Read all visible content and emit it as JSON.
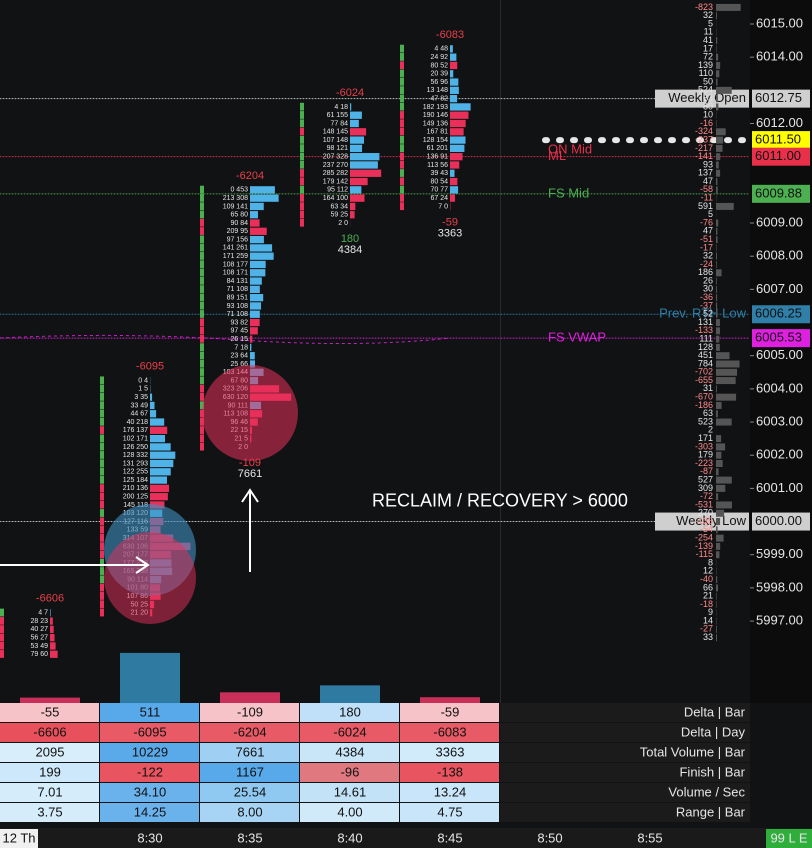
{
  "price_axis": {
    "ticks": [
      {
        "value": 6015,
        "label": "6015.00"
      },
      {
        "value": 6014,
        "label": "6014.00"
      },
      {
        "value": 6012,
        "label": "6012.00"
      },
      {
        "value": 6009,
        "label": "6009.00"
      },
      {
        "value": 6008,
        "label": "6008.00"
      },
      {
        "value": 6007,
        "label": "6007.00"
      },
      {
        "value": 6005,
        "label": "6005.00"
      },
      {
        "value": 6004,
        "label": "6004.00"
      },
      {
        "value": 6003,
        "label": "6003.00"
      },
      {
        "value": 6002,
        "label": "6002.00"
      },
      {
        "value": 6001,
        "label": "6001.00"
      },
      {
        "value": 5999,
        "label": "5999.00"
      },
      {
        "value": 5998,
        "label": "5998.00"
      },
      {
        "value": 5997,
        "label": "5997.00"
      }
    ]
  },
  "levels": [
    {
      "name": "Weekly Open",
      "price": {
        "value": 6012.75,
        "label": "6012.75"
      },
      "color": "#cfcfcf",
      "boxed": true
    },
    {
      "price": {
        "value": 6011.5,
        "label": "6011.50"
      },
      "color": "#ffff00"
    },
    {
      "name": "ML",
      "price": {
        "value": 6011,
        "label": "6011.00"
      },
      "color": "#e8304a"
    },
    {
      "name": "FS Mid",
      "price": {
        "value": 6009.88,
        "label": "6009.88"
      },
      "color": "#4caf50"
    },
    {
      "name": "Prev. RTH Low",
      "price": {
        "value": 6006.25,
        "label": "6006.25"
      },
      "color": "#2f7fa8"
    },
    {
      "name": "FS VWAP",
      "price": {
        "value": 6005.53,
        "label": "6005.53"
      },
      "color": "#e020e0"
    },
    {
      "name": "Weekly Low",
      "price": {
        "value": 6000,
        "label": "6000.00"
      },
      "color": "#cfcfcf",
      "boxed": true
    }
  ],
  "annotations": [
    {
      "text": "ON Mid",
      "price": 6011.2,
      "color": "#e8304a"
    },
    {
      "text": "RECLAIM / RECOVERY > 6000",
      "price": 6000.6,
      "color": "#ffffff"
    }
  ],
  "bars": [
    {
      "top_price": 5997.25,
      "rows": [
        "4 7",
        "28 23",
        "40 27",
        "56 27",
        "53 49",
        "79 60"
      ]
    },
    {
      "top_price": 6004.25,
      "rows": [
        "0 4",
        "1 5",
        "3 35",
        "33 49",
        "44 67",
        "40 218",
        "176 137",
        "102 171",
        "126 250",
        "128 332",
        "131 293",
        "122 255",
        "125 184",
        "210 136",
        "200 125",
        "145 118",
        "103 120",
        "127 116",
        "133 59",
        "314 107",
        "630 106",
        "207 177",
        "177 213",
        "165 238",
        "90 114",
        "101 80",
        "107 86",
        "50 25",
        "21 20"
      ]
    },
    {
      "top_price": 6010,
      "show_totals": true,
      "rows": [
        "0 453",
        "213 308",
        "109 141",
        "65 80",
        "90 84",
        "209 95",
        "97 156",
        "141 261",
        "171 259",
        "108 177",
        "108 171",
        "84 131",
        "71 108",
        "89 151",
        "93 108",
        "71 108",
        "93 82",
        "97 45",
        "26 15",
        "7 18",
        "23 64",
        "25 66",
        "103 144",
        "67 80",
        "323 206",
        "630 120",
        "90 111",
        "113 108",
        "96 46",
        "22 15",
        "21 5",
        "2 0"
      ]
    },
    {
      "top_price": 6012.5,
      "show_totals": true,
      "rows": [
        "4 18",
        "61 155",
        "77 84",
        "148 145",
        "107 148",
        "98 121",
        "207 328",
        "237 270",
        "285 282",
        "179 142",
        "95 112",
        "164 100",
        "63 34",
        "59 25",
        "2 0"
      ]
    },
    {
      "top_price": 6014.25,
      "show_totals": true,
      "rows": [
        "4 48",
        "24 92",
        "80 52",
        "20 39",
        "56 96",
        "13 148",
        "47 82",
        "182 193",
        "190 146",
        "149 136",
        "167 81",
        "128 154",
        "61 201",
        "136 91",
        "113 56",
        "39 43",
        "80 54",
        "70 77",
        "67 24",
        "7 0"
      ]
    }
  ],
  "dom": {
    "top_price": 6015.5,
    "values": [
      "-823",
      "32",
      "5",
      "11",
      "41",
      "17",
      "72",
      "139",
      "110",
      "50",
      "524",
      "63",
      "80",
      "10",
      "-16",
      "-324",
      "-237",
      "-217",
      "-141",
      "93",
      "137",
      "47",
      "-58",
      "-11",
      "591",
      "5",
      "-76",
      "47",
      "-51",
      "-17",
      "32",
      "-24",
      "186",
      "26",
      "30",
      "-36",
      "-37",
      "52",
      "131",
      "-133",
      "111",
      "128",
      "451",
      "784",
      "-702",
      "-655",
      "31",
      "-670",
      "-186",
      "63",
      "523",
      "2",
      "171",
      "-303",
      "179",
      "-223",
      "-87",
      "527",
      "309",
      "-72",
      "-531",
      "270",
      "-135",
      "-54",
      "-254",
      "-139",
      "-115",
      "8",
      "12",
      "-40",
      "66",
      "21",
      "-18",
      "9",
      "14",
      "-27",
      "33"
    ]
  },
  "table": {
    "rows": [
      {
        "label": "Delta | Bar",
        "values": [
          "-55",
          "511",
          "-109",
          "180",
          "-59"
        ],
        "colors": [
          "#f6c3c8",
          "#58a9ea",
          "#f6c3c8",
          "#bfe0f8",
          "#f6c3c8"
        ]
      },
      {
        "label": "Delta | Day",
        "values": [
          "-6606",
          "-6095",
          "-6204",
          "-6024",
          "-6083"
        ],
        "colors": [
          "#e8505c",
          "#e85a65",
          "#e85a65",
          "#e85a65",
          "#e85a65"
        ]
      },
      {
        "label": "Total Volume | Bar",
        "values": [
          "2095",
          "10229",
          "7661",
          "4384",
          "3363"
        ],
        "colors": [
          "#d8eefb",
          "#5aaaea",
          "#9fd0f3",
          "#c9e6f8",
          "#d2ebfa"
        ]
      },
      {
        "label": "Finish | Bar",
        "values": [
          "199",
          "-122",
          "1167",
          "-96",
          "-138"
        ],
        "colors": [
          "#cde8fa",
          "#e85560",
          "#58a9ea",
          "#e07880",
          "#e85560"
        ]
      },
      {
        "label": "Volume / Sec",
        "values": [
          "7.01",
          "34.10",
          "25.54",
          "14.61",
          "13.24"
        ],
        "colors": [
          "#d5ecfa",
          "#6ab2ec",
          "#8fc8f1",
          "#c2e2f8",
          "#c8e5f9"
        ]
      },
      {
        "label": "Range | Bar",
        "values": [
          "3.75",
          "14.25",
          "8.00",
          "4.00",
          "4.75"
        ],
        "colors": [
          "#d5ecfa",
          "#6ab2ec",
          "#a7d4f4",
          "#d0eafa",
          "#c8e5f9"
        ]
      }
    ]
  },
  "time_axis": [
    "12 Th",
    "8:30",
    "8:35",
    "8:40",
    "8:45",
    "8:50",
    "8:55",
    "99 L E"
  ]
}
